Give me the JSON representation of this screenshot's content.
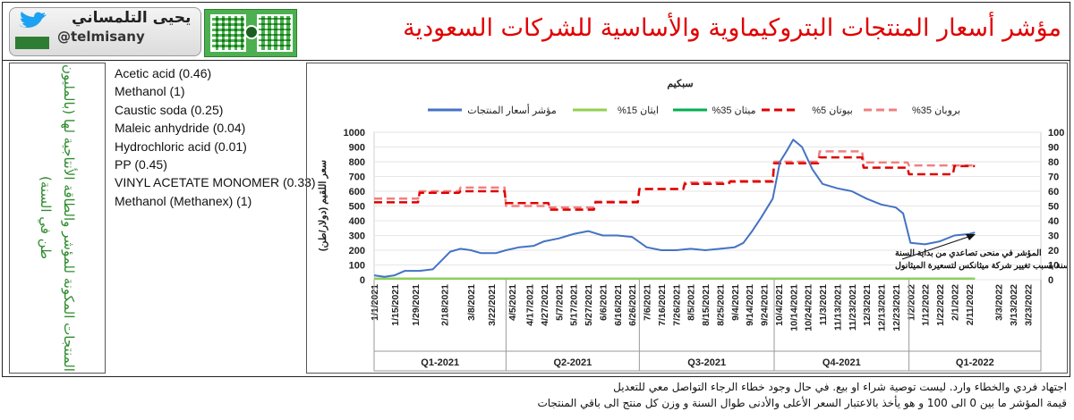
{
  "header": {
    "title": "مؤشر أسعار المنتجات البتروكيماوية والأساسية للشركات السعودية",
    "author_name": "يحيى التلمساني",
    "author_handle": "@telmisany"
  },
  "left_panel": {
    "caption": "المنتجات المكونة للمؤشر والطاقة الأنتاجية لها (بالمليون طن في السنة)",
    "products": [
      "Acetic acid (0.46)",
      "Methanol (1)",
      "Caustic soda (0.25)",
      "Maleic anhydride (0.04)",
      "Hydrochloric acid (0.01)",
      "PP (0.45)",
      "VINYL ACETATE MONOMER (0.33)",
      "Methanol (Methanex) (1)"
    ]
  },
  "footer": {
    "line1": "اجتهاد فردي والخطاء وارد. ليست توصية شراء او بيع. في حال وجود خطاء الرجاء التواصل معي للتعديل",
    "line2": "قيمة المؤشر ما بين 0 الى 100 و هو يأخذ بالاعتبار السعر الأعلى والأدنى طوال السنة و وزن كل منتج الى باقي المنتجات"
  },
  "colors": {
    "title": "#e00000",
    "index_line": "#4472c4",
    "ethane": "#92d050",
    "methane": "#00b050",
    "butane": "#e00000",
    "propane": "#f08080",
    "caption": "#2e8b2e"
  },
  "chart_data": {
    "type": "line",
    "title": "سبكيم",
    "ylabel": "سعر اللقيم (دولار/طن)",
    "ylim_left": [
      0,
      1000
    ],
    "yticks_left": [
      0,
      100,
      200,
      300,
      400,
      500,
      600,
      700,
      800,
      900,
      1000
    ],
    "ylim_right": [
      0,
      100
    ],
    "yticks_right": [
      0,
      10,
      20,
      30,
      40,
      50,
      60,
      70,
      80,
      90,
      100
    ],
    "date_range": [
      "2021-01-01",
      "2022-04-01"
    ],
    "x_tick_labels": [
      "1/1/2021",
      "1/15/2021",
      "1/29/2021",
      "2/18/2021",
      "3/8/2021",
      "3/22/2021",
      "4/5/2021",
      "4/17/2021",
      "4/27/2021",
      "5/7/2021",
      "5/17/2021",
      "5/27/2021",
      "6/6/2021",
      "6/16/2021",
      "6/26/2021",
      "7/6/2021",
      "7/16/2021",
      "7/26/2021",
      "8/5/2021",
      "8/15/2021",
      "8/25/2021",
      "9/4/2021",
      "9/14/2021",
      "9/24/2021",
      "10/4/2021",
      "10/14/2021",
      "10/24/2021",
      "11/3/2021",
      "11/13/2021",
      "11/23/2021",
      "12/3/2021",
      "12/13/2021",
      "12/23/2021",
      "1/2/2022",
      "1/12/2022",
      "1/22/2022",
      "2/1/2022",
      "2/11/2022",
      "3/3/2022",
      "3/13/2022",
      "3/23/2022"
    ],
    "quarters": [
      {
        "label": "Q1-2021",
        "start": "2021-01-01",
        "end": "2021-04-01"
      },
      {
        "label": "Q2-2021",
        "start": "2021-04-01",
        "end": "2021-07-01"
      },
      {
        "label": "Q3-2021",
        "start": "2021-07-01",
        "end": "2021-10-01"
      },
      {
        "label": "Q4-2021",
        "start": "2021-10-01",
        "end": "2022-01-01"
      },
      {
        "label": "Q1-2022",
        "start": "2022-01-01",
        "end": "2022-04-01"
      }
    ],
    "series": [
      {
        "name": "بروبان 35%",
        "axis": "left",
        "style": "dashed",
        "color": "#f08080",
        "points": [
          [
            "2021-01-01",
            550
          ],
          [
            "2021-01-31",
            550
          ],
          [
            "2021-02-01",
            600
          ],
          [
            "2021-02-28",
            600
          ],
          [
            "2021-03-01",
            625
          ],
          [
            "2021-03-31",
            625
          ],
          [
            "2021-04-01",
            500
          ],
          [
            "2021-04-30",
            500
          ],
          [
            "2021-05-01",
            490
          ],
          [
            "2021-05-31",
            490
          ],
          [
            "2021-06-01",
            530
          ],
          [
            "2021-06-30",
            530
          ],
          [
            "2021-07-01",
            615
          ],
          [
            "2021-07-31",
            615
          ],
          [
            "2021-08-01",
            660
          ],
          [
            "2021-08-31",
            660
          ],
          [
            "2021-09-01",
            670
          ],
          [
            "2021-09-30",
            670
          ],
          [
            "2021-10-01",
            800
          ],
          [
            "2021-10-31",
            800
          ],
          [
            "2021-11-01",
            870
          ],
          [
            "2021-11-30",
            870
          ],
          [
            "2021-12-01",
            795
          ],
          [
            "2021-12-31",
            795
          ],
          [
            "2022-01-01",
            775
          ],
          [
            "2022-01-31",
            775
          ],
          [
            "2022-02-01",
            775
          ],
          [
            "2022-02-15",
            775
          ]
        ]
      },
      {
        "name": "بيوتان 5%",
        "axis": "left",
        "style": "dashed",
        "color": "#e00000",
        "points": [
          [
            "2021-01-01",
            525
          ],
          [
            "2021-01-31",
            525
          ],
          [
            "2021-02-01",
            590
          ],
          [
            "2021-02-28",
            590
          ],
          [
            "2021-03-01",
            600
          ],
          [
            "2021-03-31",
            600
          ],
          [
            "2021-04-01",
            520
          ],
          [
            "2021-04-30",
            520
          ],
          [
            "2021-05-01",
            475
          ],
          [
            "2021-05-31",
            475
          ],
          [
            "2021-06-01",
            525
          ],
          [
            "2021-06-30",
            525
          ],
          [
            "2021-07-01",
            615
          ],
          [
            "2021-07-31",
            615
          ],
          [
            "2021-08-01",
            650
          ],
          [
            "2021-08-31",
            650
          ],
          [
            "2021-09-01",
            665
          ],
          [
            "2021-09-30",
            665
          ],
          [
            "2021-10-01",
            790
          ],
          [
            "2021-10-31",
            790
          ],
          [
            "2021-11-01",
            830
          ],
          [
            "2021-11-30",
            830
          ],
          [
            "2021-12-01",
            760
          ],
          [
            "2021-12-31",
            760
          ],
          [
            "2022-01-01",
            715
          ],
          [
            "2022-01-31",
            715
          ],
          [
            "2022-02-01",
            770
          ],
          [
            "2022-02-15",
            770
          ]
        ]
      },
      {
        "name": "ميثان 35%",
        "axis": "left",
        "style": "solid",
        "color": "#00b050",
        "points": [
          [
            "2021-01-01",
            7
          ],
          [
            "2022-02-15",
            7
          ]
        ]
      },
      {
        "name": "ايثان 15%",
        "axis": "left",
        "style": "solid",
        "color": "#92d050",
        "points": [
          [
            "2021-01-01",
            7
          ],
          [
            "2022-02-15",
            7
          ]
        ]
      },
      {
        "name": "مؤشر أسعار المنتجات",
        "axis": "right",
        "style": "solid",
        "color": "#4472c4",
        "points": [
          [
            "2021-01-01",
            3
          ],
          [
            "2021-01-08",
            2
          ],
          [
            "2021-01-15",
            3
          ],
          [
            "2021-01-22",
            6
          ],
          [
            "2021-02-01",
            6
          ],
          [
            "2021-02-10",
            7
          ],
          [
            "2021-02-15",
            12
          ],
          [
            "2021-02-22",
            19
          ],
          [
            "2021-03-01",
            21
          ],
          [
            "2021-03-08",
            20
          ],
          [
            "2021-03-15",
            18
          ],
          [
            "2021-03-25",
            18
          ],
          [
            "2021-04-01",
            20
          ],
          [
            "2021-04-10",
            22
          ],
          [
            "2021-04-20",
            23
          ],
          [
            "2021-04-27",
            26
          ],
          [
            "2021-05-07",
            28
          ],
          [
            "2021-05-17",
            31
          ],
          [
            "2021-05-27",
            33
          ],
          [
            "2021-06-06",
            30
          ],
          [
            "2021-06-16",
            30
          ],
          [
            "2021-06-26",
            29
          ],
          [
            "2021-07-06",
            22
          ],
          [
            "2021-07-16",
            20
          ],
          [
            "2021-07-26",
            20
          ],
          [
            "2021-08-05",
            21
          ],
          [
            "2021-08-15",
            20
          ],
          [
            "2021-08-25",
            21
          ],
          [
            "2021-09-04",
            22
          ],
          [
            "2021-09-10",
            25
          ],
          [
            "2021-09-16",
            33
          ],
          [
            "2021-09-22",
            42
          ],
          [
            "2021-09-30",
            55
          ],
          [
            "2021-10-05",
            80
          ],
          [
            "2021-10-10",
            88
          ],
          [
            "2021-10-14",
            95
          ],
          [
            "2021-10-20",
            90
          ],
          [
            "2021-10-27",
            75
          ],
          [
            "2021-11-03",
            65
          ],
          [
            "2021-11-13",
            62
          ],
          [
            "2021-11-23",
            60
          ],
          [
            "2021-12-03",
            55
          ],
          [
            "2021-12-13",
            51
          ],
          [
            "2021-12-23",
            49
          ],
          [
            "2021-12-28",
            45
          ],
          [
            "2022-01-02",
            25
          ],
          [
            "2022-01-12",
            24
          ],
          [
            "2022-01-22",
            26
          ],
          [
            "2022-02-01",
            30
          ],
          [
            "2022-02-11",
            31
          ],
          [
            "2022-02-15",
            32
          ]
        ]
      }
    ],
    "annotations": [
      "المؤشر في منحى تصاعدي من بداية السنة",
      "هبط قليلا بداية السنة بسبب تغيير شركة ميثانكس لتسعيرة الميثانول"
    ]
  }
}
